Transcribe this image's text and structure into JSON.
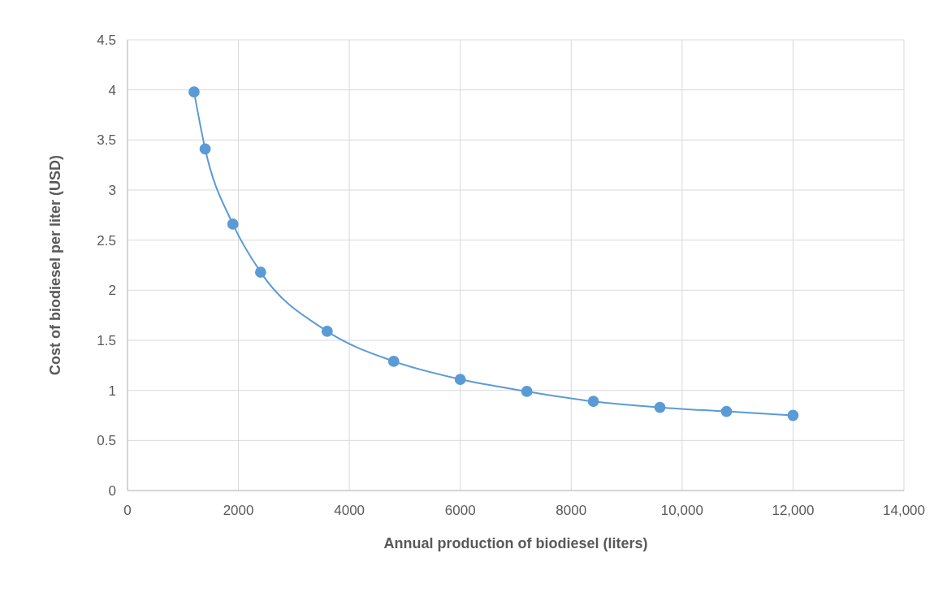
{
  "chart_data": {
    "type": "line",
    "xlabel": "Annual production  of biodiesel (liters)",
    "ylabel": "Cost of biodiesel per liter (USD)",
    "x": [
      1200,
      1400,
      1900,
      2400,
      3600,
      4800,
      6000,
      7200,
      8400,
      9600,
      10800,
      12000
    ],
    "series": [
      {
        "color": "#5b9bd5",
        "values": [
          3.98,
          3.41,
          2.66,
          2.18,
          1.59,
          1.29,
          1.11,
          0.99,
          0.89,
          0.83,
          0.79,
          0.75
        ]
      }
    ],
    "xlim": [
      0,
      14000
    ],
    "xticks": [
      0,
      2000,
      4000,
      6000,
      8000,
      {
        "value": 10000,
        "label": "10,000"
      },
      {
        "value": 12000,
        "label": "12,000"
      },
      {
        "value": 14000,
        "label": "14,000"
      }
    ],
    "ylim": [
      0,
      4.5
    ],
    "yticks": [
      0,
      0.5,
      1,
      1.5,
      2,
      2.5,
      3,
      3.5,
      4,
      4.5
    ],
    "grid": true,
    "marker": "circle",
    "line_style": "solid"
  }
}
